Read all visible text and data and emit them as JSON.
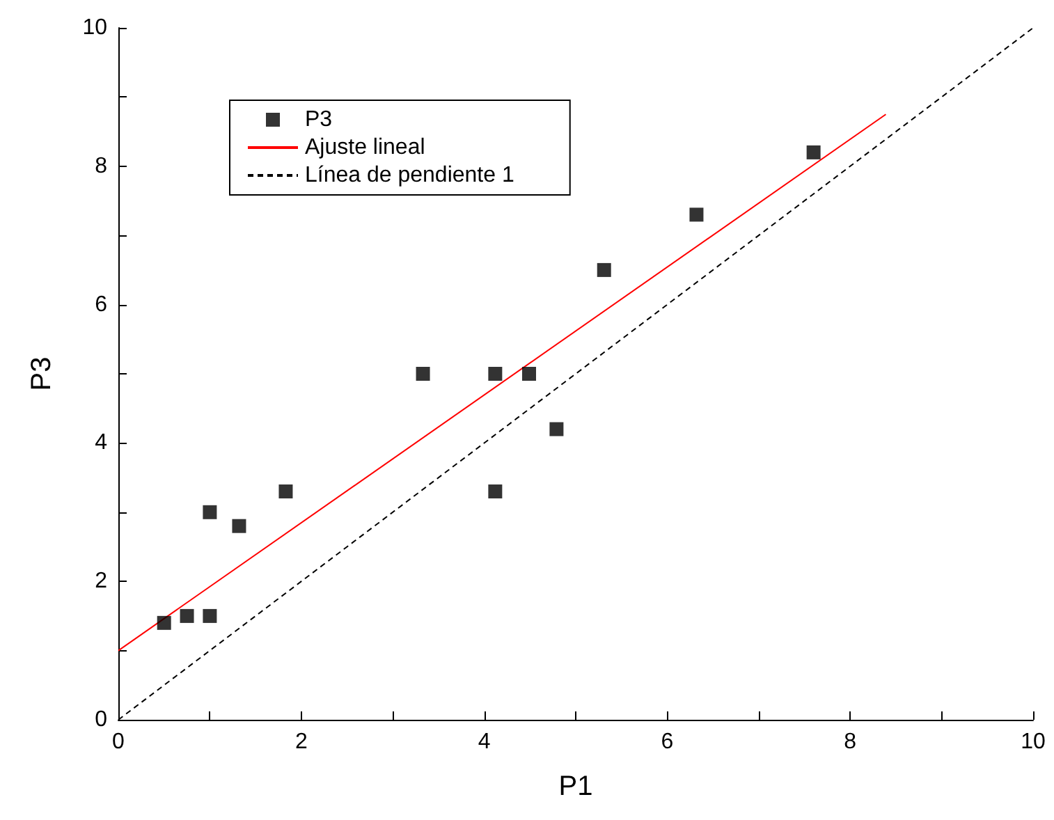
{
  "chart_data": {
    "type": "scatter",
    "xlabel": "P1",
    "ylabel": "P3",
    "xlim": [
      0,
      10
    ],
    "ylim": [
      0,
      10
    ],
    "xticks": [
      0,
      {
        "value": 1,
        "label": null
      },
      2,
      {
        "value": 3,
        "label": null
      },
      4,
      {
        "value": 5,
        "label": null
      },
      6,
      {
        "value": 7,
        "label": null
      },
      8,
      {
        "value": 9,
        "label": null
      },
      10
    ],
    "yticks": [
      0,
      {
        "value": 1,
        "label": null
      },
      2,
      {
        "value": 3,
        "label": null
      },
      4,
      {
        "value": 5,
        "label": null
      },
      6,
      {
        "value": 7,
        "label": null
      },
      8,
      {
        "value": 9,
        "label": null
      },
      10
    ],
    "grid": false,
    "legend": "top left",
    "series": [
      {
        "name": "P3",
        "type": "scatter",
        "marker": "square",
        "color": "#000000",
        "x": [
          0.5,
          0.75,
          1.0,
          1.0,
          1.32,
          1.83,
          3.33,
          4.12,
          4.12,
          4.49,
          4.79,
          5.31,
          6.32,
          7.6
        ],
        "values": [
          1.4,
          1.5,
          1.5,
          3.0,
          2.8,
          3.3,
          5.0,
          5.0,
          3.3,
          5.0,
          4.2,
          6.5,
          7.3,
          8.2
        ]
      },
      {
        "name": "Ajuste lineal",
        "type": "line",
        "marker": "none",
        "line_style": "solid",
        "color": "#ff0000",
        "x": [
          0,
          8.39
        ],
        "values": [
          1.0,
          8.75
        ]
      },
      {
        "name": "Línea de pendiente 1",
        "type": "line",
        "marker": "none",
        "line_style": "dashed",
        "color": "#000000",
        "x": [
          0,
          10
        ],
        "values": [
          0,
          10
        ]
      }
    ]
  }
}
